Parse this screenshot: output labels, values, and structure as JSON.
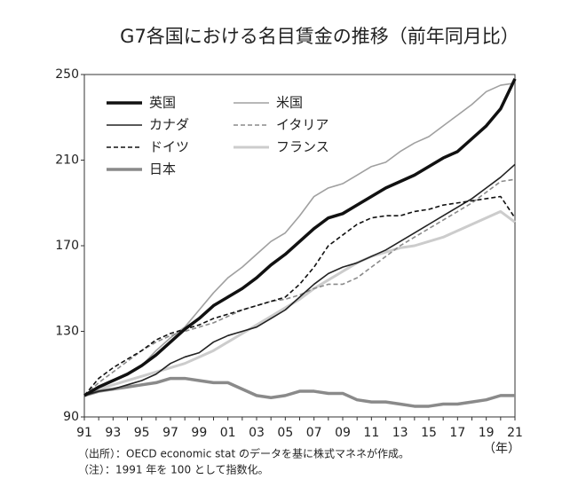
{
  "chart_data": {
    "type": "line",
    "title": "G7各国における名目賃金の推移（前年同月比）",
    "x_unit": "（年）",
    "notes": [
      "（出所）：OECD economic stat のデータを基に株式マネネが作成。",
      "（注）：1991 年を 100 として指数化。"
    ],
    "categories": [
      "91",
      null,
      "93",
      null,
      "95",
      null,
      "97",
      null,
      "99",
      null,
      "01",
      null,
      "03",
      null,
      "05",
      null,
      "07",
      null,
      "09",
      null,
      "11",
      null,
      "13",
      null,
      "15",
      null,
      "17",
      null,
      "19",
      null,
      "21"
    ],
    "ylim": [
      90,
      250
    ],
    "yticks": [
      90,
      130,
      170,
      210,
      250
    ],
    "legend": "upper left",
    "series": [
      {
        "name": "英国",
        "color": "#111111",
        "width": 3.5,
        "dash": false,
        "values": [
          100,
          104,
          107,
          110,
          114,
          119,
          125,
          131,
          136,
          142,
          146,
          150,
          155,
          161,
          166,
          172,
          178,
          183,
          185,
          189,
          193,
          197,
          200,
          203,
          207,
          211,
          214,
          220,
          226,
          234,
          248
        ]
      },
      {
        "name": "米国",
        "color": "#a0a0a0",
        "width": 1.6,
        "dash": false,
        "values": [
          100,
          104,
          107,
          110,
          114,
          121,
          127,
          132,
          140,
          148,
          155,
          160,
          166,
          172,
          176,
          184,
          193,
          197,
          199,
          203,
          207,
          209,
          214,
          218,
          221,
          226,
          231,
          236,
          242,
          245,
          246
        ]
      },
      {
        "name": "カナダ",
        "color": "#222222",
        "width": 1.6,
        "dash": false,
        "values": [
          100,
          102,
          103,
          105,
          107,
          110,
          115,
          118,
          120,
          125,
          128,
          130,
          132,
          136,
          140,
          146,
          152,
          157,
          160,
          162,
          165,
          168,
          172,
          176,
          180,
          184,
          188,
          192,
          197,
          202,
          208
        ]
      },
      {
        "name": "イタリア",
        "color": "#8a8a8a",
        "width": 1.6,
        "dash": true,
        "values": [
          100,
          106,
          111,
          116,
          121,
          125,
          128,
          130,
          132,
          134,
          137,
          140,
          142,
          144,
          145,
          147,
          150,
          152,
          152,
          155,
          160,
          165,
          170,
          174,
          178,
          182,
          186,
          190,
          195,
          200,
          201
        ]
      },
      {
        "name": "ドイツ",
        "color": "#111111",
        "width": 1.6,
        "dash": true,
        "values": [
          100,
          108,
          113,
          117,
          121,
          126,
          129,
          131,
          133,
          136,
          138,
          140,
          142,
          144,
          146,
          152,
          160,
          170,
          175,
          180,
          183,
          184,
          184,
          186,
          187,
          189,
          190,
          191,
          192,
          193,
          183
        ]
      },
      {
        "name": "フランス",
        "color": "#cccccc",
        "width": 3,
        "dash": false,
        "values": [
          100,
          103,
          105,
          107,
          109,
          111,
          113,
          115,
          118,
          121,
          125,
          129,
          133,
          137,
          141,
          145,
          150,
          154,
          158,
          162,
          165,
          167,
          169,
          170,
          172,
          174,
          177,
          180,
          183,
          186,
          181
        ]
      },
      {
        "name": "日本",
        "color": "#8a8a8a",
        "width": 3.5,
        "dash": false,
        "values": [
          100,
          102,
          103,
          104,
          105,
          106,
          108,
          108,
          107,
          106,
          106,
          103,
          100,
          99,
          100,
          102,
          102,
          101,
          101,
          98,
          97,
          97,
          96,
          95,
          95,
          96,
          96,
          97,
          98,
          100,
          100
        ]
      }
    ]
  }
}
